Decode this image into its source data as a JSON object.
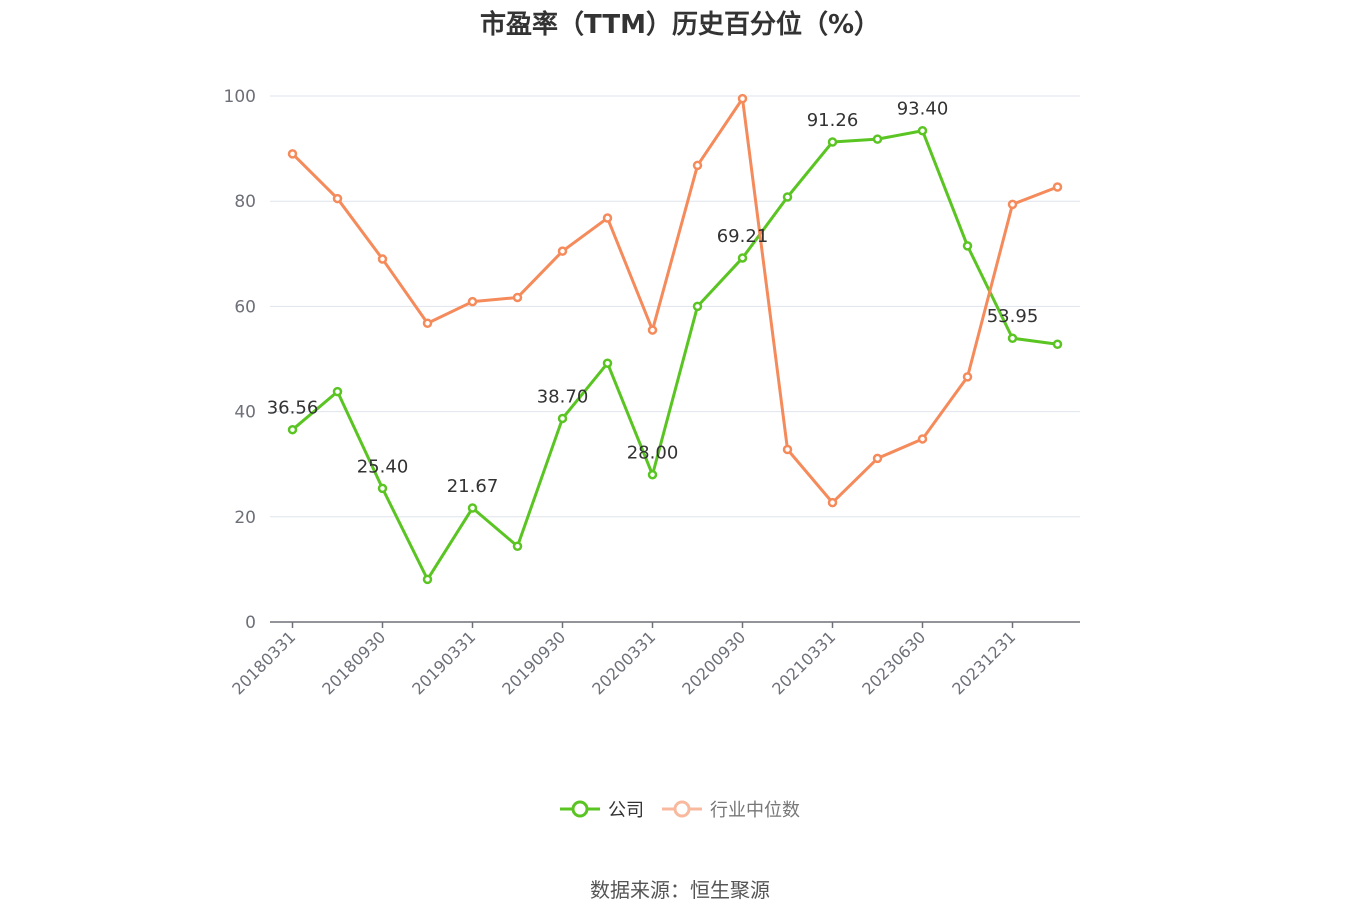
{
  "title": "市盈率（TTM）历史百分位（%）",
  "source": "数据来源：恒生聚源",
  "legend": [
    {
      "label": "公司",
      "color": "#5ac522"
    },
    {
      "label": "行业中位数",
      "color": "#f58a5b"
    }
  ],
  "chart_data": {
    "type": "line",
    "title": "市盈率（TTM）历史百分位（%）",
    "xlabel": "",
    "ylabel": "",
    "ylim": [
      0,
      100
    ],
    "yticks": [
      0,
      20,
      40,
      60,
      80,
      100
    ],
    "grid": true,
    "legend_position": "bottom",
    "x": [
      "20180331",
      "",
      "20180930",
      "",
      "20190331",
      "",
      "20190930",
      "",
      "20200331",
      "",
      "20200930",
      "",
      "20210331",
      "",
      "20230630",
      "",
      "20231231",
      ""
    ],
    "x_tick_labels": [
      "20180331",
      "20180930",
      "20190331",
      "20190930",
      "20200331",
      "20200930",
      "20210331",
      "20230630",
      "20231231"
    ],
    "series": [
      {
        "name": "公司",
        "color": "#5ac522",
        "values": [
          36.56,
          43.8,
          25.4,
          8.1,
          21.67,
          14.4,
          38.7,
          49.2,
          28.0,
          60.0,
          69.21,
          80.8,
          91.26,
          91.8,
          93.4,
          71.5,
          53.95,
          52.8
        ],
        "data_labels": [
          "36.56",
          "",
          "25.40",
          "",
          "21.67",
          "",
          "38.70",
          "",
          "28.00",
          "",
          "69.21",
          "",
          "91.26",
          "",
          "93.40",
          "",
          "53.95",
          ""
        ]
      },
      {
        "name": "行业中位数",
        "color": "#f58a5b",
        "values": [
          89.0,
          80.5,
          69.0,
          56.8,
          60.9,
          61.7,
          70.5,
          76.8,
          55.5,
          86.8,
          99.5,
          32.8,
          22.7,
          31.1,
          34.8,
          46.6,
          79.4,
          82.7
        ]
      }
    ]
  }
}
